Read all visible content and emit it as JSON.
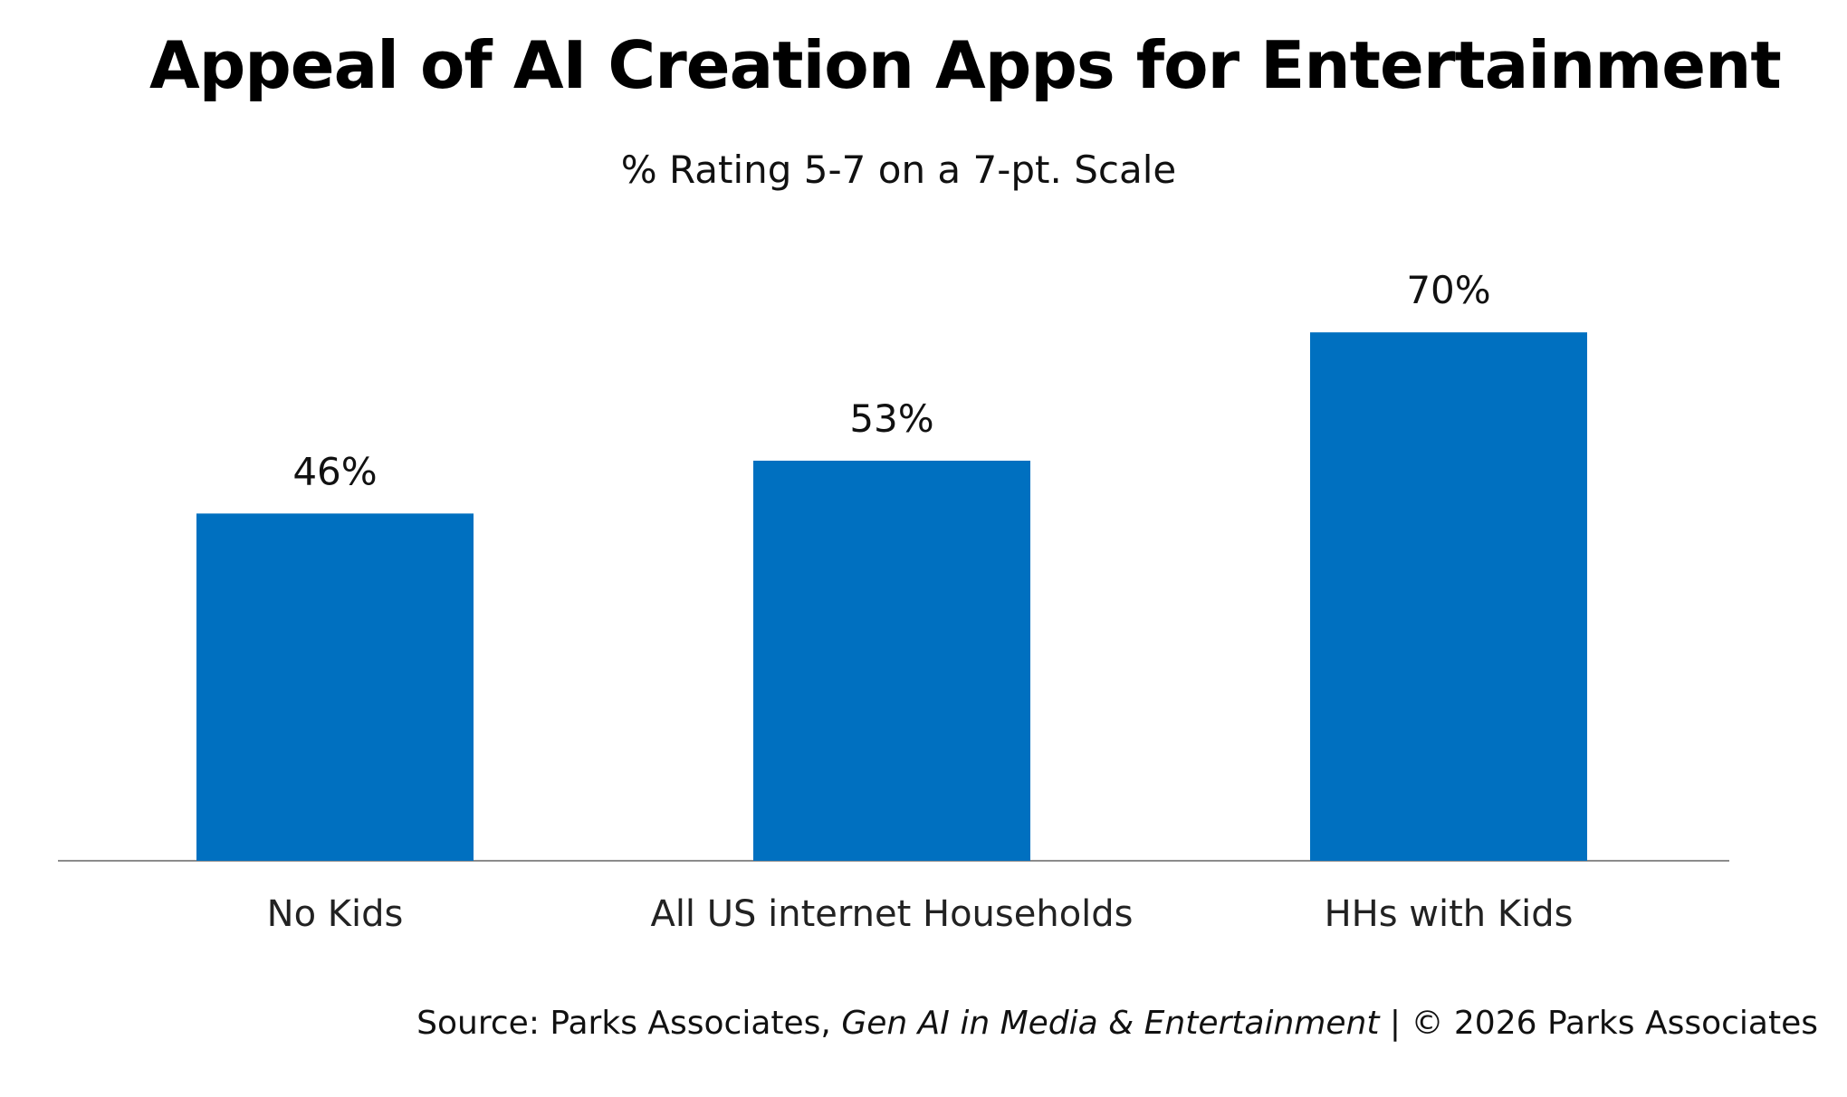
{
  "chart_data": {
    "type": "bar",
    "title": "Appeal of AI Creation Apps for Entertainment",
    "subtitle": "% Rating 5-7 on a 7-pt. Scale",
    "categories": [
      "No Kids",
      "All US internet Households",
      "HHs with Kids"
    ],
    "values": [
      46,
      53,
      70
    ],
    "value_labels": [
      "46%",
      "53%",
      "70%"
    ],
    "xlabel": "",
    "ylabel": "",
    "ylim": [
      0,
      70
    ],
    "grid": false,
    "legend": "none",
    "bar_color": "#0070C0",
    "axis_color": "#8C8C8C"
  },
  "source": {
    "prefix": "Source: Parks Associates, ",
    "report": "Gen AI in Media & Entertainment",
    "suffix": " | © 2026 Parks Associates"
  }
}
